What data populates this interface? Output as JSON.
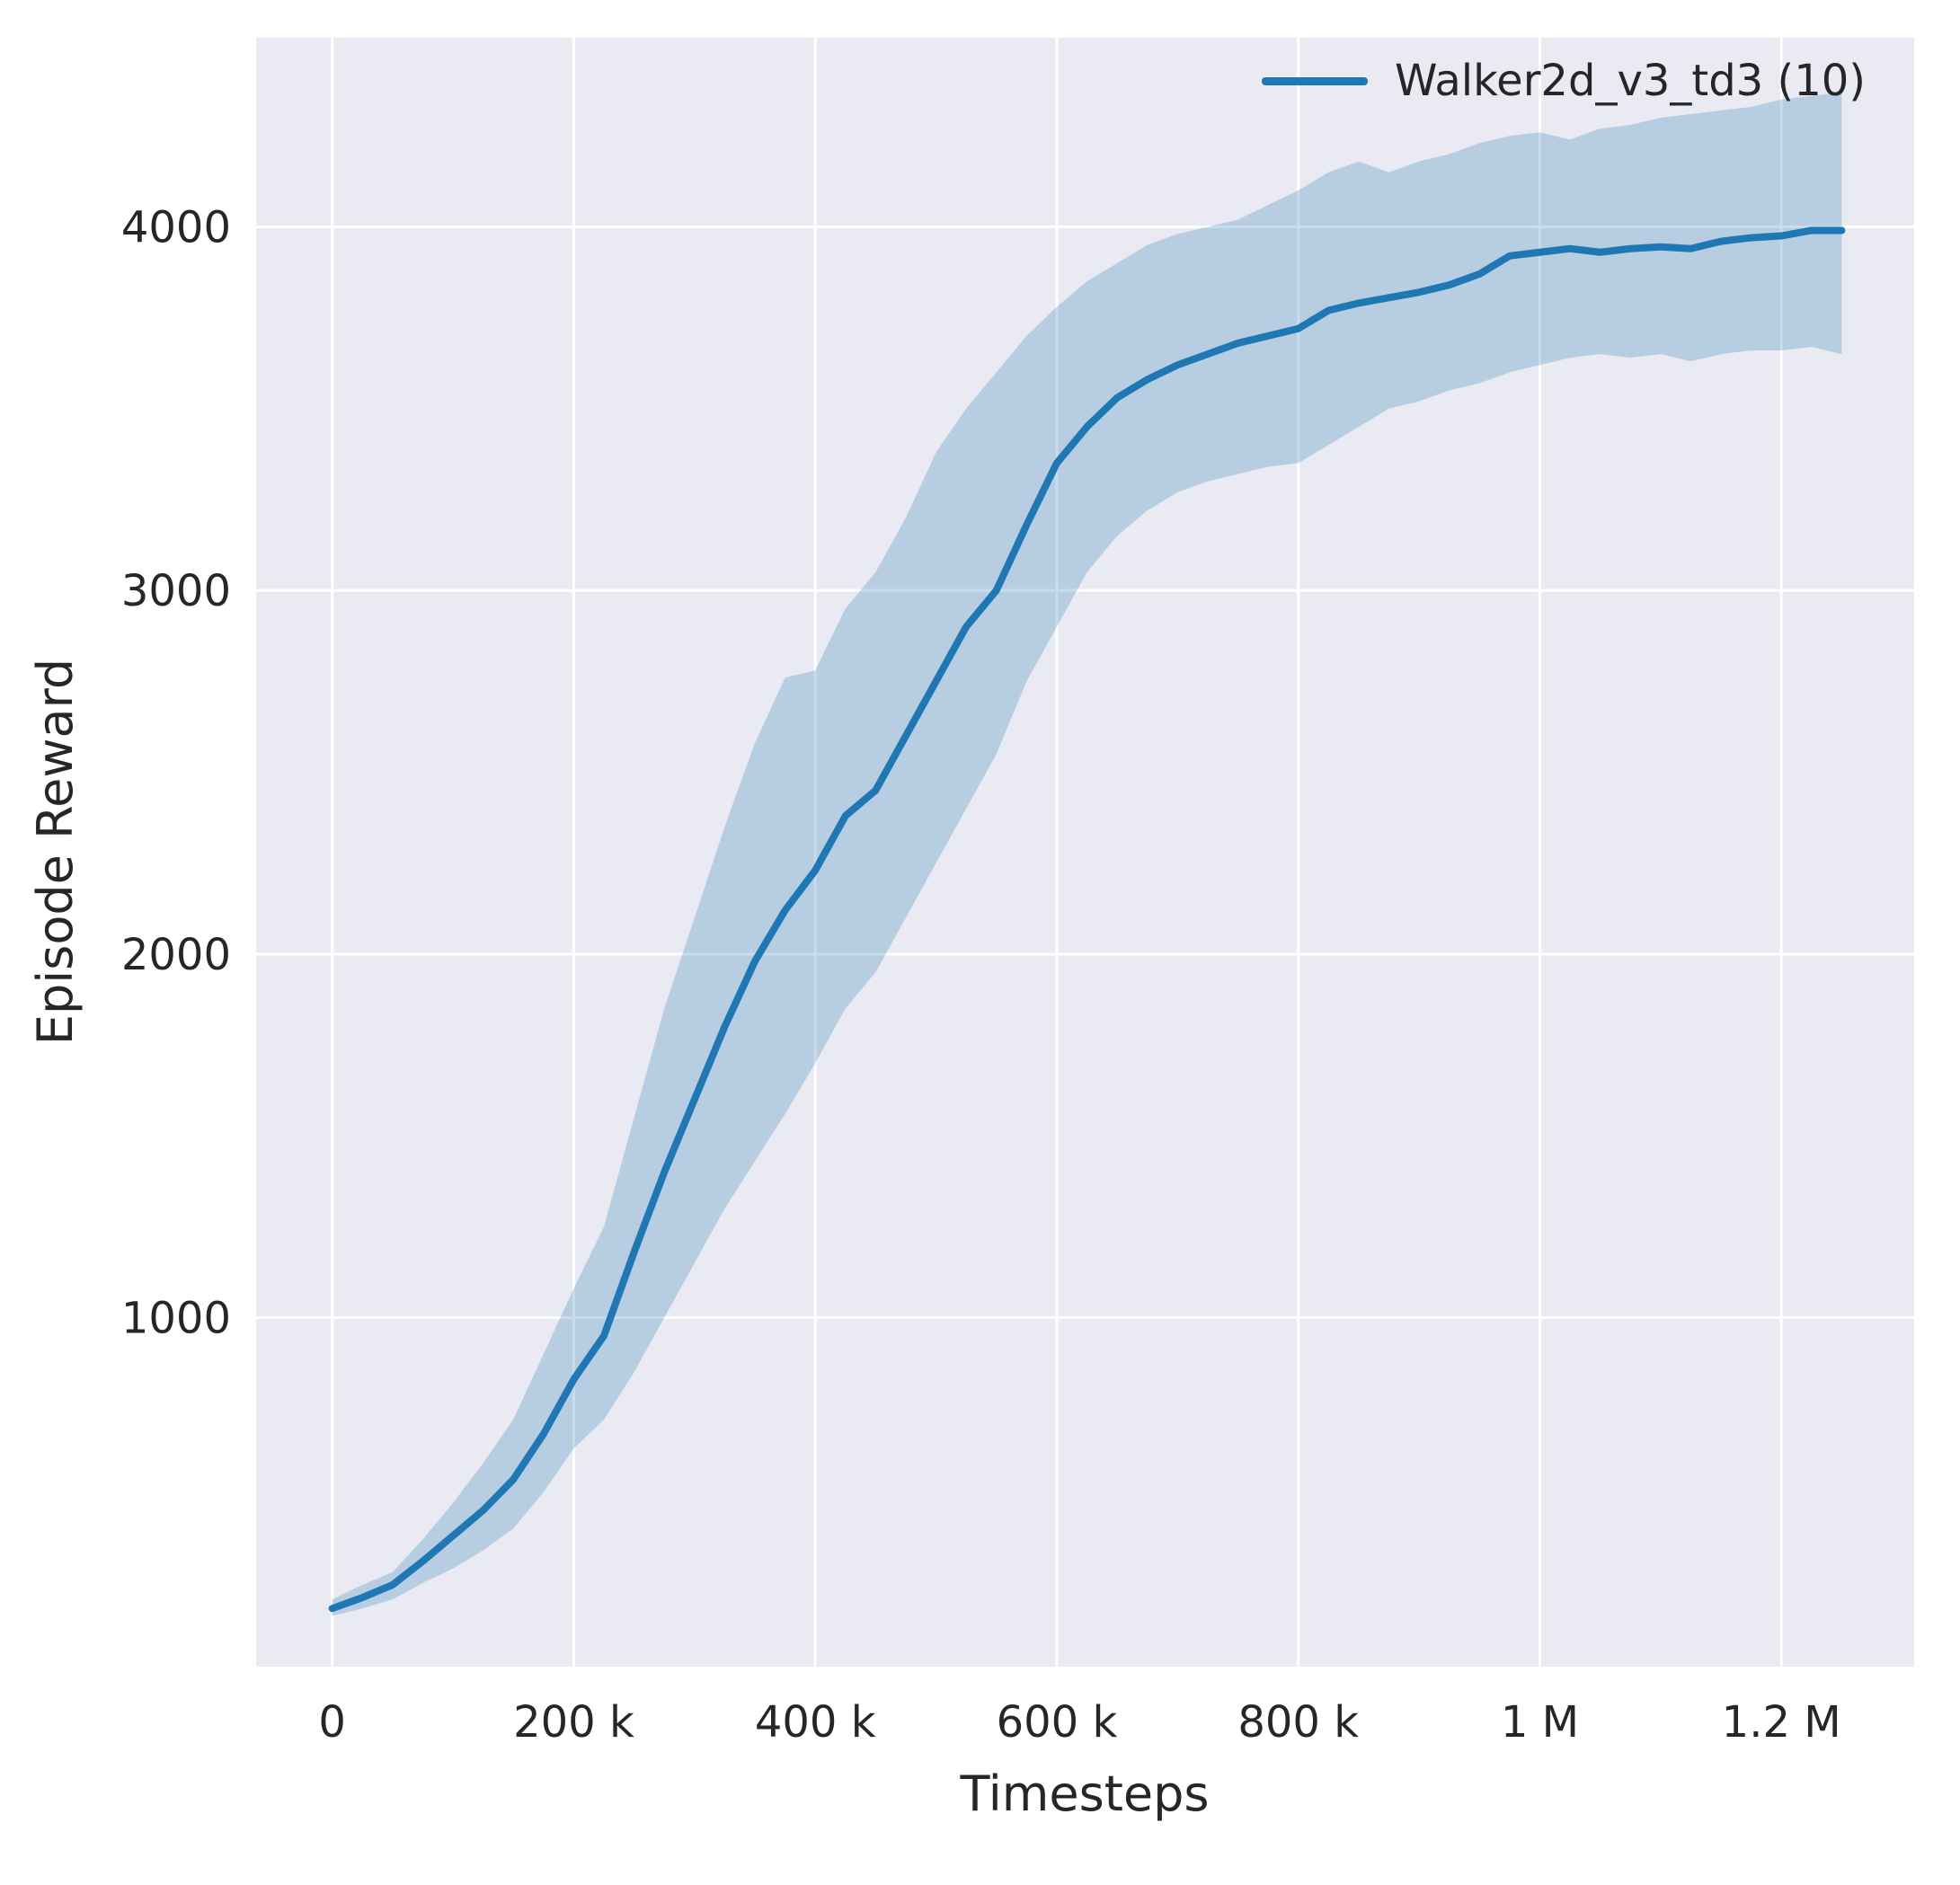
{
  "chart_data": {
    "type": "line",
    "title": "",
    "xlabel": "Timesteps",
    "ylabel": "Episode Reward",
    "legend_label": "Walker2d_v3_td3 (10)",
    "legend_position": "upper right",
    "grid": true,
    "plot_background": "#eaeaf2",
    "grid_color": "#ffffff",
    "text_color": "#262626",
    "line_color": "#1f77b4",
    "band_color": "#1f77b4",
    "band_opacity": 0.25,
    "xlim": [
      -63000,
      1310000
    ],
    "ylim": [
      40,
      4520
    ],
    "xticks": {
      "values": [
        0,
        200000,
        400000,
        600000,
        800000,
        1000000,
        1200000
      ],
      "labels": [
        "0",
        "200 k",
        "400 k",
        "600 k",
        "800 k",
        "1 M",
        "1.2 M"
      ]
    },
    "yticks": {
      "values": [
        1000,
        2000,
        3000,
        4000
      ],
      "labels": [
        "1000",
        "2000",
        "3000",
        "4000"
      ]
    },
    "series": [
      {
        "name": "Walker2d_v3_td3 (10)",
        "x": [
          0,
          25000,
          50000,
          75000,
          100000,
          125000,
          150000,
          175000,
          200000,
          225000,
          250000,
          275000,
          300000,
          325000,
          350000,
          375000,
          400000,
          425000,
          450000,
          475000,
          500000,
          525000,
          550000,
          575000,
          600000,
          625000,
          650000,
          675000,
          700000,
          725000,
          750000,
          775000,
          800000,
          825000,
          850000,
          875000,
          900000,
          925000,
          950000,
          975000,
          1000000,
          1025000,
          1050000,
          1075000,
          1100000,
          1125000,
          1150000,
          1175000,
          1200000,
          1225000,
          1250000
        ],
        "mean": [
          200,
          230,
          265,
          330,
          400,
          470,
          555,
          680,
          830,
          950,
          1180,
          1400,
          1600,
          1800,
          1980,
          2120,
          2230,
          2380,
          2450,
          2600,
          2750,
          2900,
          3000,
          3180,
          3350,
          3450,
          3530,
          3580,
          3620,
          3650,
          3680,
          3700,
          3720,
          3770,
          3790,
          3805,
          3820,
          3840,
          3870,
          3920,
          3930,
          3940,
          3930,
          3940,
          3945,
          3940,
          3960,
          3970,
          3975,
          3990,
          3990
        ],
        "lower": [
          180,
          200,
          225,
          270,
          310,
          360,
          420,
          520,
          640,
          720,
          850,
          1000,
          1150,
          1300,
          1430,
          1560,
          1700,
          1850,
          1950,
          2100,
          2250,
          2400,
          2550,
          2750,
          2900,
          3050,
          3150,
          3220,
          3270,
          3300,
          3320,
          3340,
          3350,
          3400,
          3450,
          3500,
          3520,
          3550,
          3570,
          3600,
          3620,
          3640,
          3650,
          3640,
          3650,
          3630,
          3650,
          3660,
          3660,
          3670,
          3650
        ],
        "upper": [
          225,
          265,
          300,
          390,
          490,
          600,
          720,
          900,
          1080,
          1250,
          1550,
          1850,
          2100,
          2350,
          2580,
          2760,
          2780,
          2950,
          3050,
          3200,
          3380,
          3500,
          3600,
          3700,
          3780,
          3850,
          3900,
          3950,
          3980,
          4000,
          4020,
          4060,
          4100,
          4150,
          4180,
          4150,
          4180,
          4200,
          4230,
          4250,
          4260,
          4240,
          4270,
          4280,
          4300,
          4310,
          4320,
          4330,
          4350,
          4360,
          4370
        ]
      }
    ]
  }
}
